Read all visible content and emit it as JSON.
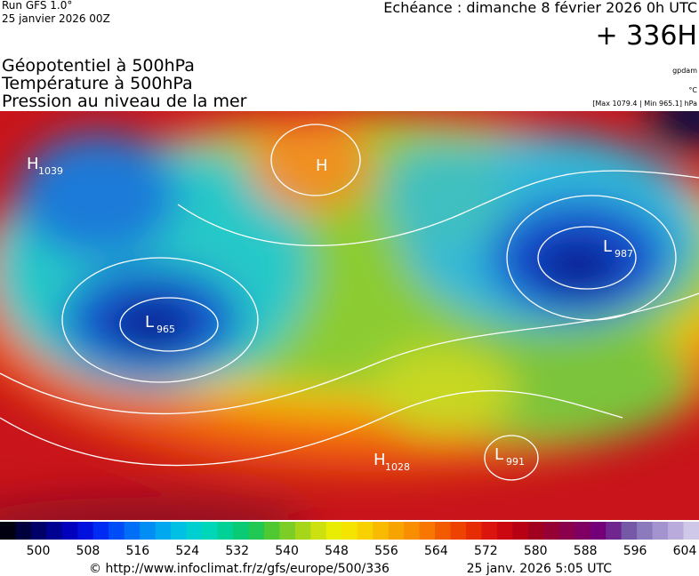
{
  "header": {
    "run": "Run GFS 1.0°",
    "date": "25 janvier 2026 00Z",
    "echeance": "Echéance : dimanche 8 février 2026 0h UTC",
    "offset": "+ 336H"
  },
  "layers": [
    "Géopotentiel à 500hPa",
    "Température à 500hPa",
    "Pression au niveau de la mer"
  ],
  "units": [
    "gpdam",
    "°C",
    "[Max 1079.4 | Min 965.1] hPa"
  ],
  "centers": [
    {
      "letter": "H",
      "value": "1039"
    },
    {
      "letter": "L",
      "value": "965"
    },
    {
      "letter": "H",
      "value": "1028"
    },
    {
      "letter": "L",
      "value": "991"
    },
    {
      "letter": "L",
      "value": "987"
    },
    {
      "letter": "H"
    }
  ],
  "colorbar": {
    "ticks": [
      "500",
      "508",
      "516",
      "524",
      "532",
      "540",
      "548",
      "556",
      "564",
      "572",
      "580",
      "588",
      "596",
      "604"
    ]
  },
  "footer": {
    "url": "© http://www.infoclimat.fr/z/gfs/europe/500/336",
    "generated": "25 janv. 2026  5:05 UTC"
  }
}
